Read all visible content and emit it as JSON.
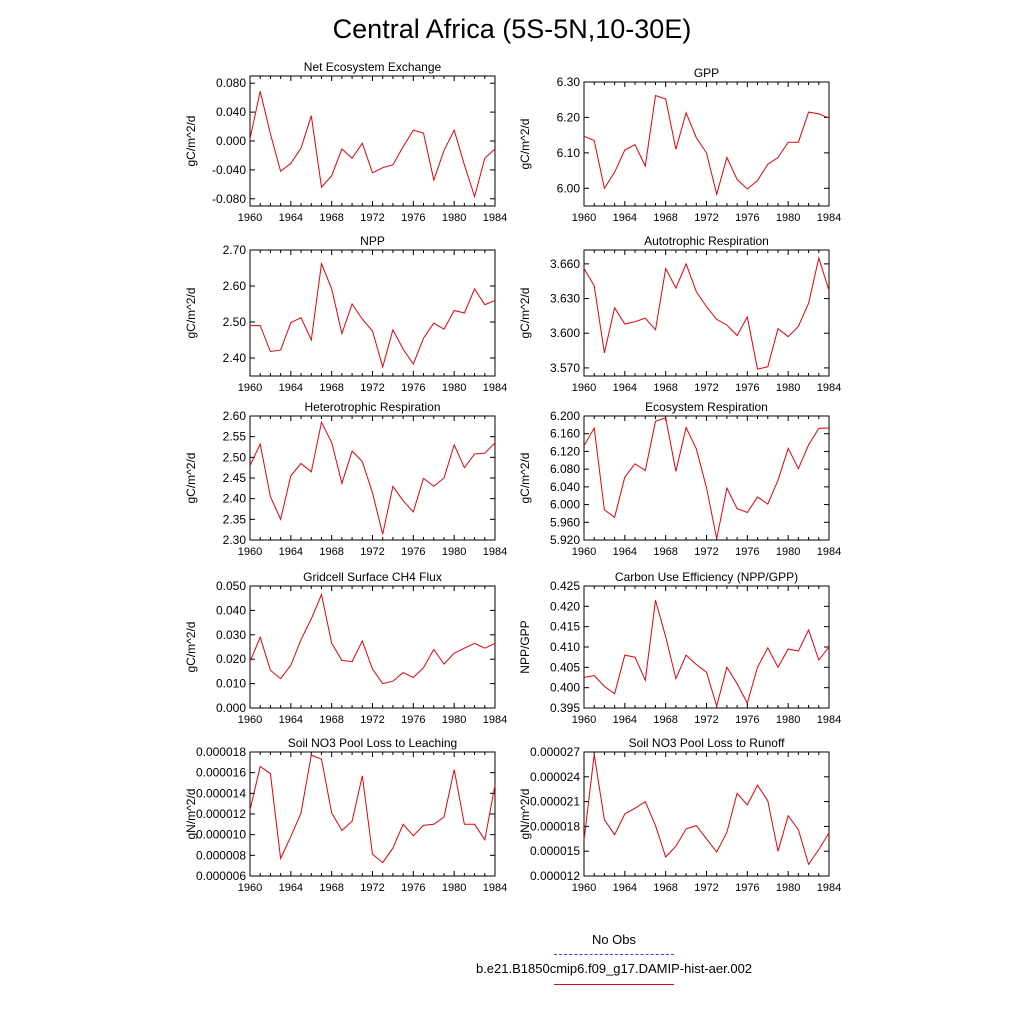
{
  "page_title": "Central Africa (5S-5N,10-30E)",
  "colors": {
    "model_line": "#e8000b",
    "obs_line": "#3c3cff",
    "axis": "#000000"
  },
  "legend": {
    "obs_label": "No Obs",
    "model_label": "b.e21.B1850cmip6.f09_g17.DAMIP-hist-aer.002"
  },
  "x_ticks": [
    "1960",
    "1964",
    "1968",
    "1972",
    "1976",
    "1980",
    "1984"
  ],
  "chart_data": [
    {
      "type": "line",
      "title": "Net Ecosystem Exchange",
      "ylabel": "gC/m^2/d",
      "xlim": [
        1960,
        1984
      ],
      "ylim": [
        -0.09,
        0.09
      ],
      "yticks": [
        -0.08,
        -0.04,
        0.0,
        0.04,
        0.08
      ],
      "ytick_labels": [
        "-0.080",
        "-0.040",
        "0.000",
        "0.040",
        "0.080"
      ],
      "x": [
        1960,
        1961,
        1962,
        1963,
        1964,
        1965,
        1966,
        1967,
        1968,
        1969,
        1970,
        1971,
        1972,
        1973,
        1974,
        1975,
        1976,
        1977,
        1978,
        1979,
        1980,
        1981,
        1982,
        1983,
        1984
      ],
      "values": [
        0.003,
        0.069,
        0.01,
        -0.042,
        -0.031,
        -0.01,
        0.035,
        -0.064,
        -0.048,
        -0.011,
        -0.024,
        -0.003,
        -0.044,
        -0.037,
        -0.033,
        -0.008,
        0.015,
        0.011,
        -0.054,
        -0.013,
        0.015,
        -0.033,
        -0.077,
        -0.024,
        -0.011
      ]
    },
    {
      "type": "line",
      "title": "GPP",
      "ylabel": "gC/m^2/d",
      "xlim": [
        1960,
        1984
      ],
      "ylim": [
        5.95,
        6.3
      ],
      "yticks": [
        6.0,
        6.1,
        6.2,
        6.3
      ],
      "ytick_labels": [
        "6.00",
        "6.10",
        "6.20",
        "6.30"
      ],
      "x": [
        1960,
        1961,
        1962,
        1963,
        1964,
        1965,
        1966,
        1967,
        1968,
        1969,
        1970,
        1971,
        1972,
        1973,
        1974,
        1975,
        1976,
        1977,
        1978,
        1979,
        1980,
        1981,
        1982,
        1983,
        1984
      ],
      "values": [
        6.147,
        6.135,
        6.0,
        6.045,
        6.108,
        6.123,
        6.063,
        6.262,
        6.252,
        6.11,
        6.213,
        6.143,
        6.1,
        5.983,
        6.087,
        6.025,
        5.998,
        6.022,
        6.068,
        6.087,
        6.13,
        6.13,
        6.215,
        6.21,
        6.198
      ]
    },
    {
      "type": "line",
      "title": "NPP",
      "ylabel": "gC/m^2/d",
      "xlim": [
        1960,
        1984
      ],
      "ylim": [
        2.35,
        2.7
      ],
      "yticks": [
        2.4,
        2.5,
        2.6,
        2.7
      ],
      "ytick_labels": [
        "2.40",
        "2.50",
        "2.60",
        "2.70"
      ],
      "x": [
        1960,
        1961,
        1962,
        1963,
        1964,
        1965,
        1966,
        1967,
        1968,
        1969,
        1970,
        1971,
        1972,
        1973,
        1974,
        1975,
        1976,
        1977,
        1978,
        1979,
        1980,
        1981,
        1982,
        1983,
        1984
      ],
      "values": [
        2.49,
        2.49,
        2.418,
        2.422,
        2.498,
        2.512,
        2.45,
        2.662,
        2.592,
        2.468,
        2.55,
        2.508,
        2.475,
        2.375,
        2.478,
        2.425,
        2.383,
        2.455,
        2.497,
        2.48,
        2.532,
        2.525,
        2.592,
        2.548,
        2.56
      ]
    },
    {
      "type": "line",
      "title": "Autotrophic Respiration",
      "ylabel": "gC/m^2/d",
      "xlim": [
        1960,
        1984
      ],
      "ylim": [
        3.563,
        3.672
      ],
      "yticks": [
        3.57,
        3.6,
        3.63,
        3.66
      ],
      "ytick_labels": [
        "3.570",
        "3.600",
        "3.630",
        "3.660"
      ],
      "x": [
        1960,
        1961,
        1962,
        1963,
        1964,
        1965,
        1966,
        1967,
        1968,
        1969,
        1970,
        1971,
        1972,
        1973,
        1974,
        1975,
        1976,
        1977,
        1978,
        1979,
        1980,
        1981,
        1982,
        1983,
        1984
      ],
      "values": [
        3.656,
        3.641,
        3.583,
        3.622,
        3.608,
        3.61,
        3.613,
        3.603,
        3.656,
        3.639,
        3.66,
        3.636,
        3.623,
        3.612,
        3.607,
        3.598,
        3.614,
        3.569,
        3.571,
        3.604,
        3.597,
        3.606,
        3.626,
        3.665,
        3.637
      ]
    },
    {
      "type": "line",
      "title": "Heterotrophic Respiration",
      "ylabel": "gC/m^2/d",
      "xlim": [
        1960,
        1984
      ],
      "ylim": [
        2.3,
        2.6
      ],
      "yticks": [
        2.3,
        2.35,
        2.4,
        2.45,
        2.5,
        2.55,
        2.6
      ],
      "ytick_labels": [
        "2.30",
        "2.35",
        "2.40",
        "2.45",
        "2.50",
        "2.55",
        "2.60"
      ],
      "x": [
        1960,
        1961,
        1962,
        1963,
        1964,
        1965,
        1966,
        1967,
        1968,
        1969,
        1970,
        1971,
        1972,
        1973,
        1974,
        1975,
        1976,
        1977,
        1978,
        1979,
        1980,
        1981,
        1982,
        1983,
        1984
      ],
      "values": [
        2.48,
        2.532,
        2.405,
        2.35,
        2.455,
        2.485,
        2.465,
        2.585,
        2.536,
        2.437,
        2.515,
        2.49,
        2.414,
        2.314,
        2.43,
        2.395,
        2.368,
        2.449,
        2.43,
        2.45,
        2.53,
        2.475,
        2.508,
        2.51,
        2.535
      ]
    },
    {
      "type": "line",
      "title": "Ecosystem Respiration",
      "ylabel": "gC/m^2/d",
      "xlim": [
        1960,
        1984
      ],
      "ylim": [
        5.92,
        6.2
      ],
      "yticks": [
        5.92,
        5.96,
        6.0,
        6.04,
        6.08,
        6.12,
        6.16,
        6.2
      ],
      "ytick_labels": [
        "5.920",
        "5.960",
        "6.000",
        "6.040",
        "6.080",
        "6.120",
        "6.160",
        "6.200"
      ],
      "x": [
        1960,
        1961,
        1962,
        1963,
        1964,
        1965,
        1966,
        1967,
        1968,
        1969,
        1970,
        1971,
        1972,
        1973,
        1974,
        1975,
        1976,
        1977,
        1978,
        1979,
        1980,
        1981,
        1982,
        1983,
        1984
      ],
      "values": [
        6.133,
        6.173,
        5.988,
        5.971,
        6.062,
        6.092,
        6.077,
        6.188,
        6.196,
        6.075,
        6.174,
        6.126,
        6.038,
        5.923,
        6.037,
        5.991,
        5.982,
        6.017,
        6.001,
        6.055,
        6.127,
        6.081,
        6.135,
        6.172,
        6.173
      ]
    },
    {
      "type": "line",
      "title": "Gridcell Surface CH4 Flux",
      "ylabel": "gC/m^2/d",
      "xlim": [
        1960,
        1984
      ],
      "ylim": [
        0.0,
        0.05
      ],
      "yticks": [
        0.0,
        0.01,
        0.02,
        0.03,
        0.04,
        0.05
      ],
      "ytick_labels": [
        "0.000",
        "0.010",
        "0.020",
        "0.030",
        "0.040",
        "0.050"
      ],
      "x": [
        1960,
        1961,
        1962,
        1963,
        1964,
        1965,
        1966,
        1967,
        1968,
        1969,
        1970,
        1971,
        1972,
        1973,
        1974,
        1975,
        1976,
        1977,
        1978,
        1979,
        1980,
        1981,
        1982,
        1983,
        1984
      ],
      "values": [
        0.019,
        0.029,
        0.0155,
        0.012,
        0.0175,
        0.028,
        0.0365,
        0.0465,
        0.0265,
        0.0195,
        0.019,
        0.0275,
        0.016,
        0.01,
        0.011,
        0.0145,
        0.0125,
        0.0165,
        0.024,
        0.018,
        0.0225,
        0.0245,
        0.0265,
        0.0245,
        0.0265
      ]
    },
    {
      "type": "line",
      "title": "Carbon Use Efficiency (NPP/GPP)",
      "ylabel": "NPP/GPP",
      "xlim": [
        1960,
        1984
      ],
      "ylim": [
        0.395,
        0.425
      ],
      "yticks": [
        0.395,
        0.4,
        0.405,
        0.41,
        0.415,
        0.42,
        0.425
      ],
      "ytick_labels": [
        "0.395",
        "0.400",
        "0.405",
        "0.410",
        "0.415",
        "0.420",
        "0.425"
      ],
      "x": [
        1960,
        1961,
        1962,
        1963,
        1964,
        1965,
        1966,
        1967,
        1968,
        1969,
        1970,
        1971,
        1972,
        1973,
        1974,
        1975,
        1976,
        1977,
        1978,
        1979,
        1980,
        1981,
        1982,
        1983,
        1984
      ],
      "values": [
        0.4025,
        0.403,
        0.4003,
        0.3985,
        0.408,
        0.4075,
        0.4018,
        0.4215,
        0.4125,
        0.4022,
        0.408,
        0.4057,
        0.4038,
        0.3955,
        0.405,
        0.401,
        0.3962,
        0.405,
        0.4098,
        0.405,
        0.4095,
        0.409,
        0.4142,
        0.4068,
        0.41
      ]
    },
    {
      "type": "line",
      "title": "Soil NO3 Pool Loss to Leaching",
      "ylabel": "gN/m^2/d",
      "xlim": [
        1960,
        1984
      ],
      "ylim": [
        6e-06,
        1.8e-05
      ],
      "yticks": [
        6e-06,
        8e-06,
        1e-05,
        1.2e-05,
        1.4e-05,
        1.6e-05,
        1.8e-05
      ],
      "ytick_labels": [
        "0.000006",
        "0.000008",
        "0.000010",
        "0.000012",
        "0.000014",
        "0.000016",
        "0.000018"
      ],
      "x": [
        1960,
        1961,
        1962,
        1963,
        1964,
        1965,
        1966,
        1967,
        1968,
        1969,
        1970,
        1971,
        1972,
        1973,
        1974,
        1975,
        1976,
        1977,
        1978,
        1979,
        1980,
        1981,
        1982,
        1983,
        1984
      ],
      "values": [
        1.24e-05,
        1.66e-05,
        1.59e-05,
        7.7e-06,
        9.8e-06,
        1.21e-05,
        1.77e-05,
        1.73e-05,
        1.21e-05,
        1.04e-05,
        1.13e-05,
        1.57e-05,
        8.1e-06,
        7.3e-06,
        8.7e-06,
        1.1e-05,
        9.9e-06,
        1.09e-05,
        1.1e-05,
        1.17e-05,
        1.63e-05,
        1.1e-05,
        1.1e-05,
        9.5e-06,
        1.48e-05
      ]
    },
    {
      "type": "line",
      "title": "Soil NO3 Pool Loss to Runoff",
      "ylabel": "gN/m^2/d",
      "xlim": [
        1960,
        1984
      ],
      "ylim": [
        1.2e-05,
        2.7e-05
      ],
      "yticks": [
        1.2e-05,
        1.5e-05,
        1.8e-05,
        2.1e-05,
        2.4e-05,
        2.7e-05
      ],
      "ytick_labels": [
        "0.000012",
        "0.000015",
        "0.000018",
        "0.000021",
        "0.000024",
        "0.000027"
      ],
      "x": [
        1960,
        1961,
        1962,
        1963,
        1964,
        1965,
        1966,
        1967,
        1968,
        1969,
        1970,
        1971,
        1972,
        1973,
        1974,
        1975,
        1976,
        1977,
        1978,
        1979,
        1980,
        1981,
        1982,
        1983,
        1984
      ],
      "values": [
        1.63e-05,
        2.67e-05,
        1.88e-05,
        1.7e-05,
        1.95e-05,
        2.02e-05,
        2.1e-05,
        1.81e-05,
        1.43e-05,
        1.56e-05,
        1.77e-05,
        1.81e-05,
        1.65e-05,
        1.49e-05,
        1.73e-05,
        2.2e-05,
        2.06e-05,
        2.3e-05,
        2.11e-05,
        1.5e-05,
        1.93e-05,
        1.76e-05,
        1.34e-05,
        1.52e-05,
        1.72e-05
      ]
    }
  ]
}
